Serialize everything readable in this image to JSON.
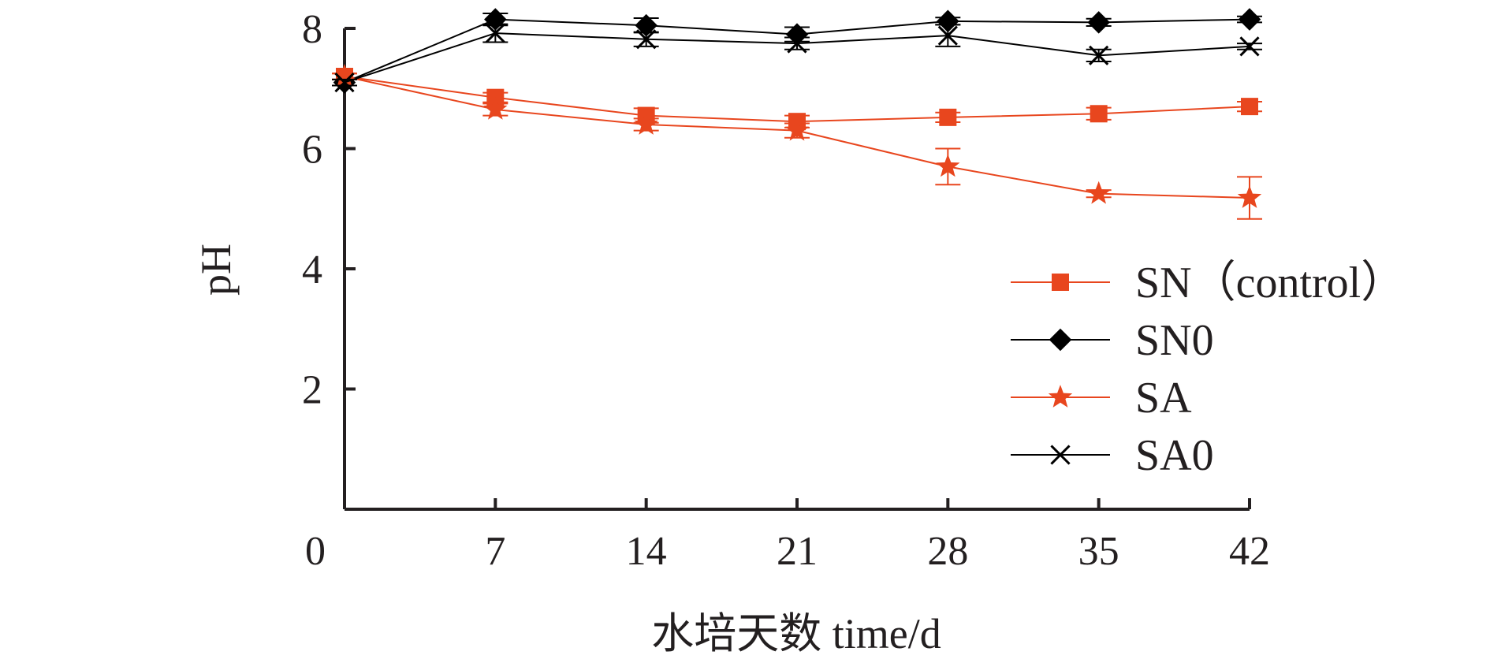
{
  "chart_data": {
    "type": "line",
    "xlabel": "水培天数 time/d",
    "ylabel": "pH",
    "xlim": [
      0,
      42
    ],
    "ylim": [
      0,
      8
    ],
    "x_ticks": [
      "0",
      "7",
      "14",
      "21",
      "28",
      "35",
      "42"
    ],
    "y_ticks": [
      "2",
      "4",
      "6",
      "8"
    ],
    "grid": false,
    "legend_position": "lower-right",
    "x": [
      0,
      7,
      14,
      21,
      28,
      35,
      42
    ],
    "series": [
      {
        "name": "SN（control）",
        "color": "#e8461e",
        "marker": "square",
        "values": [
          7.2,
          6.85,
          6.55,
          6.45,
          6.52,
          6.58,
          6.7
        ],
        "errors": [
          0.05,
          0.08,
          0.12,
          0.1,
          0.08,
          0.1,
          0.08
        ]
      },
      {
        "name": "SN0",
        "color": "#000000",
        "marker": "diamond",
        "values": [
          7.1,
          8.15,
          8.05,
          7.9,
          8.12,
          8.1,
          8.15
        ],
        "errors": [
          0.05,
          0.1,
          0.12,
          0.12,
          0.06,
          0.06,
          0.05
        ]
      },
      {
        "name": "SA",
        "color": "#e8461e",
        "marker": "star",
        "values": [
          7.2,
          6.65,
          6.4,
          6.3,
          5.7,
          5.25,
          5.18
        ],
        "errors": [
          0.05,
          0.1,
          0.1,
          0.12,
          0.3,
          0.06,
          0.35
        ]
      },
      {
        "name": "SA0",
        "color": "#000000",
        "marker": "cross",
        "values": [
          7.1,
          7.92,
          7.82,
          7.75,
          7.88,
          7.55,
          7.7
        ],
        "errors": [
          0.05,
          0.15,
          0.12,
          0.1,
          0.18,
          0.1,
          0.05
        ]
      }
    ]
  }
}
